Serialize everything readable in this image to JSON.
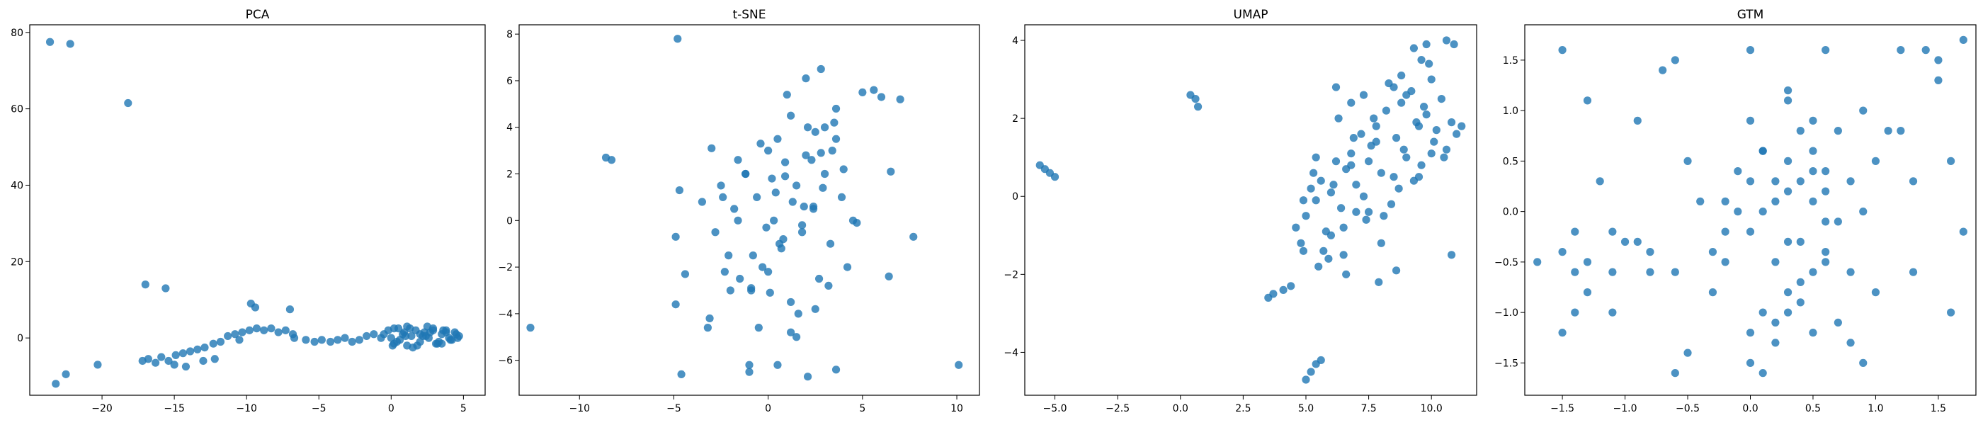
{
  "chart_data": [
    {
      "type": "scatter",
      "title": "PCA",
      "xlabel": "",
      "ylabel": "",
      "xlim": [
        -25,
        6.5
      ],
      "ylim": [
        -15,
        82
      ],
      "xticks": [
        -20,
        -15,
        -10,
        -5,
        0,
        5
      ],
      "yticks": [
        0,
        20,
        40,
        60,
        80
      ],
      "xtick_labels": [
        "−20",
        "−15",
        "−10",
        "−5",
        "0",
        "5"
      ],
      "ytick_labels": [
        "0",
        "20",
        "40",
        "60",
        "80"
      ],
      "color": "#1f77b4",
      "grid": false,
      "x": [
        -23.6,
        -22.2,
        -18.2,
        -23.2,
        -22.5,
        -20.3,
        -17.0,
        -15.6,
        -17.2,
        -16.8,
        -16.3,
        -15.9,
        -15.4,
        -14.9,
        -14.4,
        -13.9,
        -13.4,
        -12.9,
        -12.3,
        -11.8,
        -11.3,
        -10.8,
        -10.3,
        -9.8,
        -9.3,
        -8.8,
        -8.3,
        -7.8,
        -7.3,
        -6.8,
        -9.7,
        -9.4,
        -7.0,
        -6.7,
        -5.9,
        -5.3,
        -4.8,
        -4.2,
        -3.7,
        -3.2,
        -2.7,
        -2.2,
        -1.7,
        -1.2,
        -0.7,
        -0.2,
        0.2,
        0.5,
        0.8,
        1.1,
        1.4,
        1.7,
        2.0,
        2.3,
        2.6,
        2.9,
        3.2,
        3.5,
        3.8,
        4.1,
        4.4,
        4.7,
        0.0,
        0.4,
        0.9,
        1.3,
        1.8,
        2.2,
        2.7,
        3.1,
        3.6,
        4.0,
        4.5,
        0.2,
        0.6,
        1.1,
        1.5,
        2.0,
        2.4,
        2.9,
        3.3,
        3.8,
        4.2,
        -0.5,
        0.1,
        1.0,
        2.5,
        3.5,
        4.6,
        -14.2,
        -13.0,
        -15.0,
        -10.5,
        -12.2
      ],
      "y": [
        77.5,
        77.0,
        61.5,
        -12.0,
        -9.5,
        -7.0,
        14.0,
        13.0,
        -6.0,
        -5.5,
        -6.5,
        -5.0,
        -6.0,
        -4.5,
        -4.0,
        -3.5,
        -3.0,
        -2.5,
        -1.5,
        -1.0,
        0.5,
        1.0,
        1.5,
        2.0,
        2.5,
        2.0,
        2.5,
        1.5,
        2.0,
        1.0,
        9.0,
        8.0,
        7.5,
        0.0,
        -0.5,
        -1.0,
        -0.5,
        -1.0,
        -0.5,
        0.0,
        -1.0,
        -0.5,
        0.5,
        1.0,
        0.0,
        2.0,
        -1.5,
        2.5,
        1.0,
        -2.0,
        0.5,
        2.0,
        -1.0,
        1.5,
        0.0,
        2.5,
        -1.5,
        1.0,
        2.0,
        -0.5,
        1.5,
        0.5,
        0.0,
        -1.0,
        1.5,
        2.5,
        -2.0,
        0.5,
        1.5,
        -1.5,
        2.0,
        0.0,
        1.0,
        2.5,
        -0.5,
        3.0,
        -2.5,
        1.0,
        0.5,
        2.0,
        -1.0,
        1.5,
        -0.5,
        1.0,
        -2.0,
        0.5,
        3.0,
        -1.5,
        0.0,
        -7.5,
        -6.0,
        -7.0,
        -0.5,
        -5.5
      ]
    },
    {
      "type": "scatter",
      "title": "t-SNE",
      "xlabel": "",
      "ylabel": "",
      "xlim": [
        -13.2,
        11.2
      ],
      "ylim": [
        -7.5,
        8.4
      ],
      "xticks": [
        -10,
        -5,
        0,
        5,
        10
      ],
      "yticks": [
        -6,
        -4,
        -2,
        0,
        2,
        4,
        6,
        8
      ],
      "xtick_labels": [
        "−10",
        "−5",
        "0",
        "5",
        "10"
      ],
      "ytick_labels": [
        "−6",
        "−4",
        "−2",
        "0",
        "2",
        "4",
        "6",
        "8"
      ],
      "color": "#1f77b4",
      "grid": false,
      "x": [
        -4.8,
        -8.6,
        -8.3,
        -12.6,
        -4.9,
        -4.6,
        -3.2,
        -3.0,
        -2.5,
        -2.1,
        -1.8,
        -1.5,
        -1.2,
        -0.9,
        -0.6,
        -0.3,
        0.0,
        0.3,
        0.6,
        0.9,
        1.2,
        1.5,
        1.8,
        2.1,
        2.4,
        2.7,
        3.0,
        3.3,
        3.6,
        3.9,
        4.2,
        4.5,
        -2.8,
        -2.4,
        -2.0,
        -1.6,
        -1.2,
        -0.8,
        -0.4,
        0.0,
        0.4,
        0.8,
        1.2,
        1.6,
        2.0,
        2.4,
        2.8,
        3.2,
        3.6,
        4.0,
        -1.0,
        -0.5,
        0.5,
        1.0,
        1.5,
        2.0,
        2.5,
        3.0,
        0.2,
        0.7,
        1.3,
        1.8,
        2.3,
        2.9,
        3.4,
        5.0,
        5.6,
        6.0,
        6.5,
        7.0,
        6.4,
        7.7,
        10.1,
        -4.7,
        -3.5,
        -1.0,
        0.5,
        1.2,
        2.1,
        3.6,
        -0.9,
        2.5,
        4.7,
        -2.3,
        -0.1,
        1.9,
        3.5,
        -1.6,
        0.9,
        2.8,
        -4.9,
        -4.4,
        -3.1,
        0.1
      ],
      "y": [
        7.8,
        2.7,
        2.6,
        -4.6,
        -3.6,
        -6.6,
        -4.6,
        3.1,
        1.5,
        -1.5,
        0.5,
        -2.5,
        2.0,
        -3.0,
        1.0,
        -2.0,
        3.0,
        0.0,
        -1.0,
        2.5,
        -3.5,
        1.5,
        -0.5,
        4.0,
        0.5,
        -2.5,
        2.0,
        -1.0,
        3.5,
        1.0,
        -2.0,
        0.0,
        -0.5,
        1.0,
        -3.0,
        0.0,
        2.0,
        -1.5,
        3.3,
        -2.2,
        1.2,
        -0.8,
        4.5,
        -4.0,
        2.8,
        0.6,
        6.5,
        -2.8,
        4.8,
        2.2,
        -6.2,
        -4.6,
        3.5,
        5.4,
        -5.0,
        6.1,
        -3.8,
        4.0,
        1.8,
        -1.2,
        0.8,
        -0.2,
        2.6,
        1.4,
        3.0,
        5.5,
        5.6,
        5.3,
        2.1,
        5.2,
        -2.4,
        -0.7,
        -6.2,
        1.3,
        0.8,
        -6.5,
        -6.2,
        -4.8,
        -6.7,
        -6.4,
        -2.9,
        3.8,
        -0.1,
        -2.2,
        -0.3,
        0.6,
        4.2,
        2.6,
        1.9,
        2.9,
        -0.7,
        -2.3,
        -4.2,
        -3.1
      ]
    },
    {
      "type": "scatter",
      "title": "UMAP",
      "xlabel": "",
      "ylabel": "",
      "xlim": [
        -6.2,
        11.8
      ],
      "ylim": [
        -5.1,
        4.4
      ],
      "xticks": [
        -5.0,
        -2.5,
        0.0,
        2.5,
        5.0,
        7.5,
        10.0
      ],
      "yticks": [
        -4,
        -2,
        0,
        2,
        4
      ],
      "xtick_labels": [
        "−5.0",
        "−2.5",
        "0.0",
        "2.5",
        "5.0",
        "7.5",
        "10.0"
      ],
      "ytick_labels": [
        "−4",
        "−2",
        "0",
        "2",
        "4"
      ],
      "color": "#1f77b4",
      "grid": false,
      "x": [
        -5.6,
        -5.4,
        -5.2,
        -5.0,
        0.4,
        0.6,
        0.7,
        5.0,
        5.2,
        5.4,
        5.6,
        3.5,
        3.7,
        4.1,
        4.4,
        4.6,
        4.8,
        5.0,
        5.2,
        5.4,
        5.6,
        5.8,
        6.0,
        6.2,
        6.4,
        6.6,
        6.8,
        7.0,
        7.2,
        7.4,
        7.6,
        7.8,
        8.0,
        8.2,
        8.4,
        8.6,
        8.8,
        9.0,
        9.2,
        9.4,
        9.6,
        9.8,
        10.0,
        10.2,
        10.4,
        10.6,
        10.8,
        11.0,
        4.9,
        5.3,
        5.7,
        6.1,
        6.5,
        6.9,
        7.3,
        7.7,
        8.1,
        8.5,
        8.9,
        9.3,
        9.7,
        10.1,
        10.5,
        5.5,
        6.0,
        6.5,
        7.0,
        7.5,
        8.0,
        8.5,
        9.0,
        9.5,
        10.0,
        6.3,
        6.8,
        7.3,
        7.8,
        8.3,
        8.8,
        9.3,
        9.8,
        9.6,
        9.9,
        10.6,
        10.9,
        8.6,
        7.9,
        6.6,
        6.2,
        5.9,
        10.8,
        11.2,
        4.9,
        5.4,
        8.7,
        7.5,
        6.8,
        9.5
      ],
      "y": [
        0.8,
        0.7,
        0.6,
        0.5,
        2.6,
        2.5,
        2.3,
        -4.7,
        -4.5,
        -4.3,
        -4.2,
        -2.6,
        -2.5,
        -2.4,
        -2.3,
        -0.8,
        -1.2,
        -0.5,
        0.2,
        -0.1,
        0.4,
        -0.9,
        0.1,
        0.9,
        -0.3,
        0.7,
        1.1,
        0.3,
        1.6,
        -0.6,
        1.3,
        1.8,
        0.6,
        2.2,
        -0.2,
        1.5,
        2.4,
        1.0,
        2.7,
        1.9,
        0.8,
        2.1,
        3.0,
        1.7,
        2.5,
        1.2,
        1.9,
        1.6,
        -0.1,
        0.6,
        -1.4,
        0.3,
        -0.8,
        1.5,
        0.0,
        2.0,
        -0.5,
        2.8,
        1.2,
        0.4,
        2.3,
        1.4,
        1.0,
        -1.8,
        -1.0,
        -1.5,
        -0.4,
        0.9,
        -1.2,
        0.5,
        2.6,
        1.8,
        1.1,
        2.0,
        0.8,
        2.6,
        1.4,
        2.9,
        3.1,
        3.8,
        3.9,
        3.5,
        3.4,
        4.0,
        3.9,
        -1.9,
        -2.2,
        -2.0,
        2.8,
        -1.6,
        -1.5,
        1.8,
        -1.4,
        1.0,
        0.2,
        -0.4,
        2.4,
        0.5
      ],
      "note": ""
    },
    {
      "type": "scatter",
      "title": "GTM",
      "xlabel": "",
      "ylabel": "",
      "xlim": [
        -1.8,
        1.8
      ],
      "ylim": [
        -1.82,
        1.85
      ],
      "xticks": [
        -1.5,
        -1.0,
        -0.5,
        0.0,
        0.5,
        1.0,
        1.5
      ],
      "yticks": [
        -1.5,
        -1.0,
        -0.5,
        0.0,
        0.5,
        1.0,
        1.5
      ],
      "xtick_labels": [
        "−1.5",
        "−1.0",
        "−0.5",
        "0.0",
        "0.5",
        "1.0",
        "1.5"
      ],
      "ytick_labels": [
        "−1.5",
        "−1.0",
        "−0.5",
        "0.0",
        "0.5",
        "1.0",
        "1.5"
      ],
      "color": "#1f77b4",
      "grid": false,
      "x": [
        -1.5,
        -1.5,
        -1.3,
        -1.7,
        -1.5,
        -1.4,
        -1.3,
        -1.3,
        -1.4,
        -1.2,
        -1.1,
        -1.1,
        -1.0,
        -0.9,
        -0.9,
        -0.8,
        -0.7,
        -0.6,
        -0.6,
        -0.5,
        -0.4,
        -0.3,
        -0.2,
        -0.1,
        0.0,
        0.0,
        0.1,
        0.1,
        0.2,
        0.2,
        0.3,
        0.3,
        0.4,
        0.4,
        0.5,
        0.5,
        0.6,
        0.6,
        0.7,
        0.7,
        0.8,
        0.8,
        0.9,
        1.0,
        1.1,
        1.2,
        1.3,
        1.4,
        1.5,
        1.6,
        1.7,
        0.0,
        0.1,
        0.2,
        0.3,
        0.4,
        0.5,
        0.6,
        -0.3,
        -0.2,
        -0.1,
        0.1,
        0.2,
        0.3,
        0.4,
        0.5,
        0.6,
        0.0,
        0.2,
        0.4,
        -0.2,
        0.1,
        0.3,
        0.5,
        0.0,
        0.3,
        0.6,
        0.9,
        1.2,
        1.5,
        -0.6,
        -0.8,
        -1.1,
        -1.4,
        0.7,
        0.8,
        1.0,
        1.3,
        -0.5,
        0.9,
        1.6,
        1.7,
        0.0,
        0.3,
        0.5,
        0.6
      ],
      "y": [
        1.6,
        -1.2,
        1.1,
        -0.5,
        -0.4,
        -0.6,
        -0.5,
        -0.8,
        -1.0,
        0.3,
        -0.2,
        -1.0,
        -0.3,
        -0.3,
        0.9,
        -0.6,
        1.4,
        1.5,
        -0.6,
        0.5,
        0.1,
        -0.4,
        0.1,
        0.4,
        1.6,
        -0.2,
        0.6,
        -1.0,
        0.3,
        -0.5,
        1.2,
        -0.8,
        0.8,
        -0.3,
        0.4,
        -1.2,
        0.2,
        -0.5,
        0.8,
        -0.1,
        0.3,
        -0.6,
        1.0,
        0.5,
        0.8,
        1.6,
        0.3,
        1.6,
        1.5,
        0.5,
        1.7,
        -1.5,
        -1.6,
        -1.1,
        -1.0,
        -0.7,
        -0.6,
        -0.4,
        -0.8,
        -0.2,
        0.0,
        0.0,
        0.1,
        0.2,
        0.3,
        0.1,
        -0.1,
        -1.2,
        -1.3,
        -0.9,
        -0.5,
        0.6,
        0.5,
        0.9,
        0.9,
        1.1,
        1.6,
        0.0,
        0.8,
        1.3,
        -1.6,
        -0.4,
        -0.6,
        -0.2,
        -1.1,
        -1.3,
        -0.8,
        -0.6,
        -1.4,
        -1.5,
        -1.0,
        -0.2,
        0.3,
        -0.3,
        0.6,
        0.4
      ]
    }
  ]
}
